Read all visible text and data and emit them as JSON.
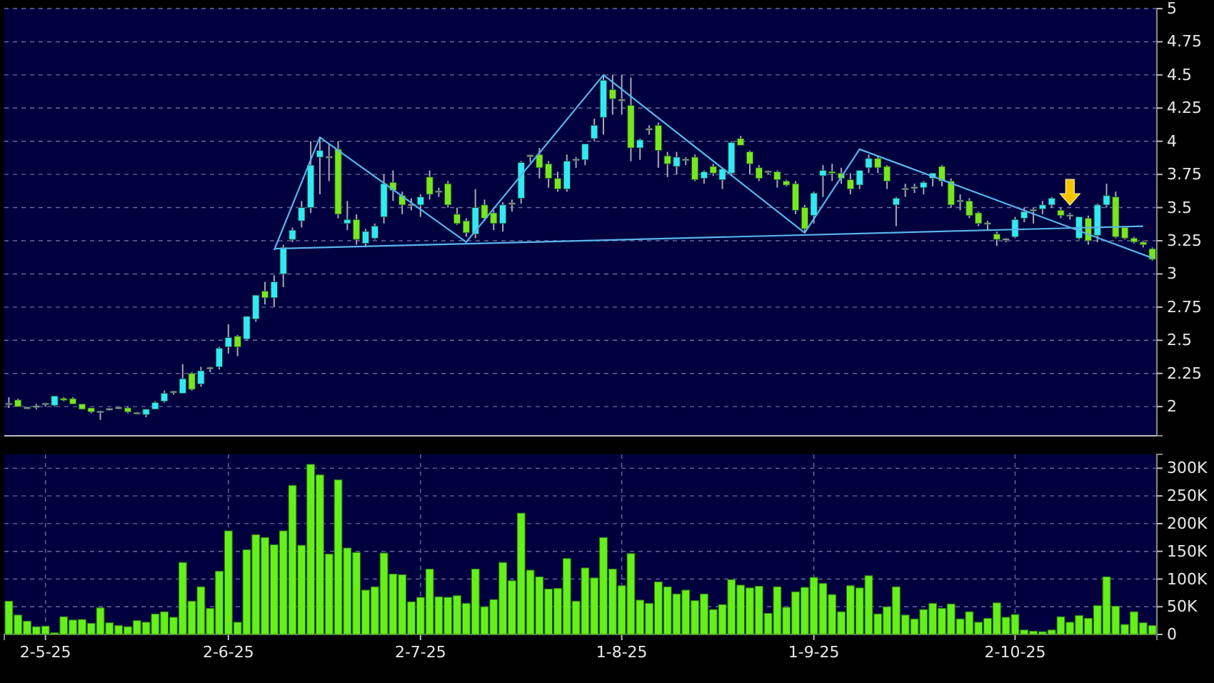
{
  "chart_data": [
    {
      "type": "candlestick",
      "categories": [
        null,
        null,
        null,
        null,
        null,
        null,
        null,
        null,
        null,
        null,
        null,
        null,
        null,
        null,
        null,
        null,
        null,
        null,
        null,
        null,
        null,
        null,
        null,
        null,
        null,
        null,
        null,
        null,
        null,
        null,
        null,
        null,
        null,
        null,
        null,
        null,
        null,
        null,
        null,
        null,
        null,
        null,
        null,
        null,
        null,
        null,
        null,
        null,
        null,
        null,
        null,
        null,
        null,
        null,
        null,
        null,
        null,
        null,
        null,
        null,
        null,
        null,
        null,
        null,
        null,
        null,
        null,
        null,
        null,
        null,
        null,
        null,
        null,
        null,
        null,
        null,
        null,
        null,
        null,
        null,
        null,
        null,
        null,
        null,
        null,
        null,
        null,
        null,
        null,
        null,
        null,
        null,
        null,
        null,
        null,
        null,
        null,
        null,
        null,
        null,
        null,
        null,
        null,
        null,
        null,
        null,
        null,
        null,
        null,
        null,
        null,
        null,
        null,
        null,
        null,
        null,
        null,
        null,
        null,
        null,
        null,
        null,
        null,
        null,
        null,
        null
      ],
      "ohlc": [
        [
          2.02,
          2.07,
          1.99,
          2.02
        ],
        [
          2.05,
          2.06,
          2.0,
          2.0
        ],
        [
          1.99,
          2.0,
          1.98,
          1.99
        ],
        [
          2.0,
          2.02,
          1.98,
          2.0
        ],
        [
          2.02,
          2.02,
          2.0,
          2.02
        ],
        [
          2.01,
          2.08,
          2.0,
          2.08
        ],
        [
          2.06,
          2.07,
          2.04,
          2.05
        ],
        [
          2.06,
          2.07,
          2.02,
          2.02
        ],
        [
          2.02,
          2.02,
          1.98,
          1.98
        ],
        [
          1.99,
          1.99,
          1.95,
          1.96
        ],
        [
          1.96,
          1.97,
          1.9,
          1.96
        ],
        [
          1.98,
          1.99,
          1.97,
          1.98
        ],
        [
          1.99,
          2.0,
          1.98,
          1.99
        ],
        [
          1.99,
          2.0,
          1.95,
          1.96
        ],
        [
          1.95,
          1.96,
          1.94,
          1.95
        ],
        [
          1.94,
          1.98,
          1.92,
          1.98
        ],
        [
          1.98,
          2.04,
          1.98,
          2.03
        ],
        [
          2.04,
          2.12,
          2.03,
          2.1
        ],
        [
          2.11,
          2.12,
          2.09,
          2.11
        ],
        [
          2.1,
          2.32,
          2.1,
          2.21
        ],
        [
          2.25,
          2.26,
          2.12,
          2.13
        ],
        [
          2.17,
          2.3,
          2.15,
          2.27
        ],
        [
          2.29,
          2.3,
          2.26,
          2.29
        ],
        [
          2.3,
          2.45,
          2.28,
          2.44
        ],
        [
          2.45,
          2.62,
          2.4,
          2.52
        ],
        [
          2.53,
          2.54,
          2.38,
          2.45
        ],
        [
          2.51,
          2.68,
          2.5,
          2.68
        ],
        [
          2.66,
          2.84,
          2.64,
          2.84
        ],
        [
          2.87,
          2.94,
          2.77,
          2.82
        ],
        [
          2.82,
          2.99,
          2.75,
          2.94
        ],
        [
          3.0,
          3.22,
          2.9,
          3.2
        ],
        [
          3.26,
          3.35,
          3.24,
          3.33
        ],
        [
          3.4,
          3.55,
          3.35,
          3.5
        ],
        [
          3.5,
          4.0,
          3.46,
          3.82
        ],
        [
          3.88,
          4.03,
          3.6,
          3.93
        ],
        [
          3.88,
          3.98,
          3.7,
          3.88
        ],
        [
          3.94,
          4.0,
          3.42,
          3.45
        ],
        [
          3.38,
          3.55,
          3.33,
          3.41
        ],
        [
          3.41,
          3.45,
          3.22,
          3.26
        ],
        [
          3.23,
          3.34,
          3.2,
          3.32
        ],
        [
          3.27,
          3.38,
          3.26,
          3.36
        ],
        [
          3.43,
          3.75,
          3.38,
          3.68
        ],
        [
          3.69,
          3.78,
          3.55,
          3.63
        ],
        [
          3.59,
          3.62,
          3.45,
          3.52
        ],
        [
          3.52,
          3.57,
          3.48,
          3.52
        ],
        [
          3.52,
          3.6,
          3.43,
          3.58
        ],
        [
          3.73,
          3.78,
          3.56,
          3.6
        ],
        [
          3.62,
          3.65,
          3.58,
          3.62
        ],
        [
          3.68,
          3.7,
          3.5,
          3.52
        ],
        [
          3.45,
          3.5,
          3.37,
          3.38
        ],
        [
          3.4,
          3.42,
          3.28,
          3.31
        ],
        [
          3.3,
          3.64,
          3.27,
          3.5
        ],
        [
          3.52,
          3.56,
          3.4,
          3.42
        ],
        [
          3.46,
          3.48,
          3.33,
          3.38
        ],
        [
          3.38,
          3.54,
          3.32,
          3.52
        ],
        [
          3.53,
          3.56,
          3.47,
          3.53
        ],
        [
          3.57,
          3.85,
          3.53,
          3.84
        ],
        [
          3.89,
          3.9,
          3.84,
          3.89
        ],
        [
          3.9,
          3.95,
          3.72,
          3.8
        ],
        [
          3.83,
          3.85,
          3.65,
          3.72
        ],
        [
          3.72,
          3.77,
          3.62,
          3.64
        ],
        [
          3.64,
          3.9,
          3.62,
          3.85
        ],
        [
          3.86,
          3.88,
          3.8,
          3.86
        ],
        [
          3.86,
          3.98,
          3.82,
          3.98
        ],
        [
          4.02,
          4.17,
          4.0,
          4.12
        ],
        [
          4.18,
          4.5,
          4.05,
          4.46
        ],
        [
          4.39,
          4.5,
          4.2,
          4.32
        ],
        [
          4.31,
          4.5,
          4.2,
          4.31
        ],
        [
          4.27,
          4.48,
          3.85,
          3.95
        ],
        [
          3.95,
          4.02,
          3.86,
          4.01
        ],
        [
          4.09,
          4.12,
          4.05,
          4.09
        ],
        [
          4.12,
          4.14,
          3.8,
          3.93
        ],
        [
          3.89,
          3.92,
          3.73,
          3.83
        ],
        [
          3.81,
          3.92,
          3.75,
          3.88
        ],
        [
          3.86,
          3.88,
          3.82,
          3.86
        ],
        [
          3.88,
          3.9,
          3.7,
          3.71
        ],
        [
          3.72,
          3.78,
          3.68,
          3.77
        ],
        [
          3.81,
          3.83,
          3.74,
          3.76
        ],
        [
          3.71,
          3.8,
          3.64,
          3.79
        ],
        [
          3.76,
          4.0,
          3.74,
          3.99
        ],
        [
          4.02,
          4.04,
          3.97,
          3.97
        ],
        [
          3.92,
          3.93,
          3.75,
          3.83
        ],
        [
          3.8,
          3.82,
          3.7,
          3.72
        ],
        [
          3.77,
          3.78,
          3.75,
          3.77
        ],
        [
          3.77,
          3.78,
          3.65,
          3.71
        ],
        [
          3.7,
          3.71,
          3.66,
          3.67
        ],
        [
          3.68,
          3.7,
          3.45,
          3.48
        ],
        [
          3.5,
          3.52,
          3.32,
          3.34
        ],
        [
          3.44,
          3.62,
          3.38,
          3.61
        ],
        [
          3.74,
          3.82,
          3.58,
          3.78
        ],
        [
          3.77,
          3.83,
          3.7,
          3.76
        ],
        [
          3.76,
          3.8,
          3.68,
          3.72
        ],
        [
          3.71,
          3.76,
          3.6,
          3.64
        ],
        [
          3.67,
          3.78,
          3.64,
          3.78
        ],
        [
          3.8,
          3.9,
          3.76,
          3.87
        ],
        [
          3.87,
          3.89,
          3.76,
          3.8
        ],
        [
          3.81,
          3.82,
          3.64,
          3.7
        ],
        [
          3.52,
          3.58,
          3.36,
          3.57
        ],
        [
          3.64,
          3.68,
          3.58,
          3.64
        ],
        [
          3.65,
          3.68,
          3.61,
          3.65
        ],
        [
          3.65,
          3.7,
          3.6,
          3.69
        ],
        [
          3.72,
          3.76,
          3.66,
          3.76
        ],
        [
          3.81,
          3.82,
          3.66,
          3.7
        ],
        [
          3.7,
          3.72,
          3.5,
          3.52
        ],
        [
          3.55,
          3.6,
          3.48,
          3.55
        ],
        [
          3.55,
          3.57,
          3.42,
          3.44
        ],
        [
          3.46,
          3.47,
          3.36,
          3.38
        ],
        [
          3.38,
          3.4,
          3.33,
          3.38
        ],
        [
          3.3,
          3.32,
          3.21,
          3.26
        ],
        [
          3.26,
          3.27,
          3.24,
          3.26
        ],
        [
          3.28,
          3.43,
          3.27,
          3.41
        ],
        [
          3.42,
          3.5,
          3.39,
          3.47
        ],
        [
          3.48,
          3.5,
          3.38,
          3.48
        ],
        [
          3.49,
          3.55,
          3.45,
          3.52
        ],
        [
          3.52,
          3.58,
          3.5,
          3.57
        ],
        [
          3.48,
          3.5,
          3.42,
          3.44
        ],
        [
          3.44,
          3.46,
          3.41,
          3.44
        ],
        [
          3.27,
          3.43,
          3.26,
          3.43
        ],
        [
          3.42,
          3.44,
          3.22,
          3.25
        ],
        [
          3.29,
          3.53,
          3.24,
          3.52
        ],
        [
          3.52,
          3.68,
          3.5,
          3.59
        ],
        [
          3.58,
          3.62,
          3.27,
          3.28
        ],
        [
          3.35,
          3.36,
          3.26,
          3.27
        ],
        [
          3.27,
          3.28,
          3.23,
          3.24
        ],
        [
          3.24,
          3.25,
          3.2,
          3.22
        ],
        [
          3.19,
          3.2,
          3.1,
          3.11
        ]
      ],
      "colors": [
        "#9a9aa8",
        "#78e61e",
        "#9a9aa8",
        "#9a9aa8",
        "#9a9aa8",
        "#33e8f5",
        "#78e61e",
        "#78e61e",
        "#78e61e",
        "#78e61e",
        "#9a9aa8",
        "#9a9aa8",
        "#9a9aa8",
        "#78e61e",
        "#9a9aa8",
        "#33e8f5",
        "#33e8f5",
        "#33e8f5",
        "#9a9aa8",
        "#33e8f5",
        "#78e61e",
        "#33e8f5",
        "#9a9aa8",
        "#33e8f5",
        "#33e8f5",
        "#78e61e",
        "#33e8f5",
        "#33e8f5",
        "#78e61e",
        "#33e8f5",
        "#33e8f5",
        "#33e8f5",
        "#33e8f5",
        "#33e8f5",
        "#33e8f5",
        "#9a9aa8",
        "#78e61e",
        "#33e8f5",
        "#78e61e",
        "#33e8f5",
        "#33e8f5",
        "#33e8f5",
        "#78e61e",
        "#78e61e",
        "#9a9aa8",
        "#33e8f5",
        "#78e61e",
        "#9a9aa8",
        "#78e61e",
        "#78e61e",
        "#78e61e",
        "#33e8f5",
        "#78e61e",
        "#78e61e",
        "#33e8f5",
        "#9a9aa8",
        "#33e8f5",
        "#9a9aa8",
        "#78e61e",
        "#78e61e",
        "#78e61e",
        "#33e8f5",
        "#9a9aa8",
        "#33e8f5",
        "#33e8f5",
        "#33e8f5",
        "#78e61e",
        "#9a9aa8",
        "#78e61e",
        "#33e8f5",
        "#9a9aa8",
        "#78e61e",
        "#78e61e",
        "#33e8f5",
        "#9a9aa8",
        "#78e61e",
        "#33e8f5",
        "#78e61e",
        "#33e8f5",
        "#33e8f5",
        "#78e61e",
        "#78e61e",
        "#78e61e",
        "#9a9aa8",
        "#78e61e",
        "#78e61e",
        "#78e61e",
        "#78e61e",
        "#33e8f5",
        "#33e8f5",
        "#78e61e",
        "#78e61e",
        "#78e61e",
        "#33e8f5",
        "#33e8f5",
        "#78e61e",
        "#78e61e",
        "#33e8f5",
        "#9a9aa8",
        "#9a9aa8",
        "#33e8f5",
        "#33e8f5",
        "#78e61e",
        "#78e61e",
        "#9a9aa8",
        "#78e61e",
        "#78e61e",
        "#9a9aa8",
        "#78e61e",
        "#9a9aa8",
        "#33e8f5",
        "#33e8f5",
        "#9a9aa8",
        "#33e8f5",
        "#33e8f5",
        "#78e61e",
        "#9a9aa8",
        "#33e8f5",
        "#78e61e",
        "#33e8f5",
        "#33e8f5",
        "#78e61e",
        "#78e61e",
        "#78e61e",
        "#78e61e",
        "#78e61e"
      ],
      "series": [
        {
          "type": "line",
          "color": "#5ab4ea",
          "values": [
            null,
            null,
            null,
            null,
            null,
            null,
            null,
            null,
            null,
            null,
            null,
            null,
            null,
            null,
            null,
            null,
            null,
            null,
            null,
            null,
            null,
            null,
            null,
            null,
            null,
            null,
            null,
            null,
            null,
            3.18,
            null,
            null,
            null,
            null,
            4.03,
            null,
            null,
            null,
            null,
            null,
            null,
            null,
            null,
            null,
            null,
            null,
            null,
            null,
            null,
            null,
            3.24,
            null,
            null,
            null,
            null,
            null,
            null,
            null,
            null,
            null,
            null,
            null,
            null,
            null,
            null,
            4.5,
            null,
            null,
            null,
            null,
            null,
            null,
            null,
            null,
            null,
            null,
            null,
            null,
            null,
            null,
            null,
            null,
            null,
            null,
            null,
            null,
            null,
            3.31,
            null,
            null,
            null,
            null,
            null,
            3.94,
            null,
            null,
            null,
            null,
            null,
            null,
            null,
            null,
            null,
            null,
            null,
            null,
            null,
            null,
            null,
            null,
            null,
            null,
            null,
            null,
            null,
            null,
            null,
            null,
            null,
            null,
            null,
            null,
            null,
            null,
            null,
            3.12
          ]
        },
        {
          "type": "line",
          "color": "#5ab4ea",
          "values": [
            null,
            null,
            null,
            null,
            null,
            null,
            null,
            null,
            null,
            null,
            null,
            null,
            null,
            null,
            null,
            null,
            null,
            null,
            null,
            null,
            null,
            null,
            null,
            null,
            null,
            null,
            null,
            null,
            null,
            3.19,
            null,
            null,
            null,
            null,
            null,
            null,
            null,
            null,
            null,
            null,
            null,
            null,
            null,
            null,
            null,
            null,
            null,
            null,
            null,
            null,
            null,
            null,
            null,
            null,
            null,
            null,
            null,
            null,
            null,
            null,
            null,
            null,
            null,
            null,
            null,
            null,
            null,
            null,
            null,
            null,
            null,
            null,
            null,
            null,
            null,
            null,
            null,
            null,
            null,
            null,
            null,
            null,
            null,
            null,
            null,
            null,
            null,
            null,
            null,
            null,
            null,
            null,
            null,
            null,
            null,
            null,
            null,
            null,
            null,
            null,
            null,
            null,
            null,
            null,
            null,
            null,
            null,
            null,
            null,
            null,
            null,
            null,
            null,
            null,
            null,
            null,
            null,
            null,
            null,
            null,
            null,
            null,
            null,
            null,
            3.36,
            null
          ]
        }
      ],
      "ylim": [
        1.78,
        5
      ],
      "yticks": [
        2,
        2.25,
        2.5,
        2.75,
        3,
        3.25,
        3.5,
        3.75,
        4,
        4.25,
        4.5,
        4.75,
        5
      ],
      "grid": "y",
      "tick_labels": "y"
    },
    {
      "type": "bar",
      "categories": [
        null,
        null,
        null,
        null,
        "2-5-25",
        null,
        null,
        null,
        null,
        null,
        null,
        null,
        null,
        null,
        null,
        null,
        null,
        null,
        null,
        null,
        null,
        null,
        null,
        null,
        "2-6-25",
        null,
        null,
        null,
        null,
        null,
        null,
        null,
        null,
        null,
        null,
        null,
        null,
        null,
        null,
        null,
        null,
        null,
        null,
        null,
        null,
        "2-7-25",
        null,
        null,
        null,
        null,
        null,
        null,
        null,
        null,
        null,
        null,
        null,
        null,
        null,
        null,
        null,
        null,
        null,
        null,
        null,
        null,
        null,
        "1-8-25",
        null,
        null,
        null,
        null,
        null,
        null,
        null,
        null,
        null,
        null,
        null,
        null,
        null,
        null,
        null,
        null,
        null,
        null,
        null,
        null,
        "1-9-25",
        null,
        null,
        null,
        null,
        null,
        null,
        null,
        null,
        null,
        null,
        null,
        null,
        null,
        null,
        null,
        null,
        null,
        null,
        null,
        null,
        null,
        "2-10-25",
        null,
        null,
        null,
        null,
        null,
        null,
        null,
        null,
        null,
        null,
        null,
        null,
        null,
        null,
        null
      ],
      "values": [
        60000,
        35000,
        24000,
        14000,
        15000,
        3000,
        32000,
        26000,
        27000,
        20000,
        48000,
        21000,
        16000,
        14000,
        25000,
        22000,
        37000,
        41000,
        31000,
        130000,
        60000,
        86000,
        47000,
        114000,
        187000,
        22000,
        153000,
        180000,
        175000,
        162000,
        187000,
        269000,
        161000,
        307000,
        288000,
        145000,
        279000,
        156000,
        148000,
        80000,
        86000,
        147000,
        109000,
        108000,
        59000,
        67000,
        118000,
        68000,
        67000,
        70000,
        56000,
        118000,
        50000,
        63000,
        130000,
        97000,
        219000,
        116000,
        104000,
        82000,
        83000,
        137000,
        60000,
        120000,
        102000,
        175000,
        118000,
        88000,
        146000,
        62000,
        56000,
        95000,
        86000,
        73000,
        80000,
        61000,
        73000,
        45000,
        54000,
        99000,
        89000,
        84000,
        87000,
        38000,
        86000,
        49000,
        77000,
        85000,
        103000,
        92000,
        72000,
        41000,
        88000,
        84000,
        106000,
        37000,
        50000,
        86000,
        35000,
        28000,
        45000,
        56000,
        47000,
        55000,
        28000,
        41000,
        22000,
        29000,
        57000,
        31000,
        36000,
        8000,
        6000,
        5000,
        8000,
        32000,
        22000,
        34000,
        29000,
        52000,
        104000,
        51000,
        18000,
        41000,
        21000,
        16000
      ],
      "color": "#66f01a",
      "ylim": [
        0,
        325000
      ],
      "yticks": [
        {
          "value": 0,
          "label": "0"
        },
        {
          "value": 50000,
          "label": "50K"
        },
        {
          "value": 100000,
          "label": "100K"
        },
        {
          "value": 150000,
          "label": "150K"
        },
        {
          "value": 200000,
          "label": "200K"
        },
        {
          "value": 250000,
          "label": "250K"
        },
        {
          "value": 300000,
          "label": "300K"
        }
      ],
      "grid": true
    }
  ]
}
